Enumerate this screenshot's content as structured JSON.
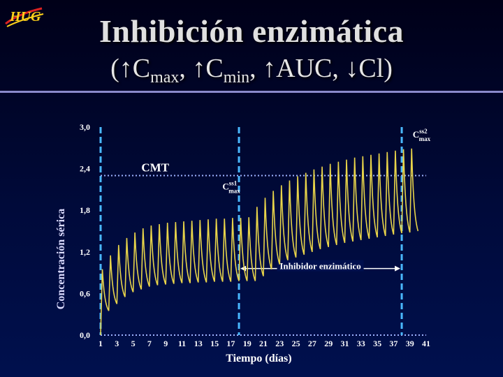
{
  "slide": {
    "title": "Inhibición enzimática",
    "subtitle_parts": {
      "open": "(",
      "a": "C",
      "a_sub": "max",
      "sep1": ", ",
      "b": "C",
      "b_sub": "min",
      "sep2": ", ",
      "c": "AUC",
      "sep3": ", ",
      "d": "Cl",
      "close": ")"
    },
    "logo_text": "HUG",
    "colors": {
      "background": "#000a3a",
      "title": "#e0e0e0",
      "rule": "#8a8acb",
      "curve": "#e8d44a",
      "axis": "#4ab8ff",
      "cmt_line": "#9fb4ff"
    }
  },
  "chart_data": {
    "type": "line",
    "ylabel": "Concentración sérica",
    "xlabel": "Tiempo (días)",
    "y_ticks": [
      "3,0",
      "2,4",
      "1,8",
      "1,2",
      "0,6",
      "0,0"
    ],
    "x_ticks": [
      "1",
      "3",
      "5",
      "7",
      "9",
      "11",
      "13",
      "15",
      "17",
      "19",
      "21",
      "23",
      "25",
      "27",
      "29",
      "31",
      "33",
      "35",
      "37",
      "39",
      "41"
    ],
    "ylim": [
      0,
      3.0
    ],
    "xlim": [
      1,
      41
    ],
    "dose_interval_days": 1,
    "cmt": {
      "label": "CMT",
      "value": 2.3
    },
    "inhibitor": {
      "label": "Inhibidor enzimático",
      "start": 18,
      "end": 38
    },
    "annotations": {
      "cmax_ss1": {
        "label": "C",
        "sup": "ss1",
        "sub": "max"
      },
      "cmax_ss2": {
        "label": "C",
        "sup": "ss2",
        "sub": "max"
      }
    },
    "series": [
      {
        "peak_before": [
          0.95,
          1.15,
          1.3,
          1.4,
          1.48,
          1.54,
          1.58,
          1.6,
          1.62,
          1.63,
          1.64,
          1.65,
          1.66,
          1.67,
          1.68,
          1.68,
          1.69,
          1.69,
          1.7
        ],
        "trough_before": [
          0.35,
          0.45,
          0.55,
          0.62,
          0.66,
          0.7,
          0.72,
          0.73,
          0.74,
          0.75,
          0.75,
          0.76,
          0.76,
          0.77,
          0.77,
          0.77,
          0.78,
          0.78,
          0.78
        ],
        "peak_after": [
          1.85,
          1.98,
          2.08,
          2.16,
          2.23,
          2.29,
          2.34,
          2.39,
          2.43,
          2.47,
          2.5,
          2.53,
          2.56,
          2.58,
          2.6,
          2.62,
          2.64,
          2.66,
          2.68,
          2.69
        ],
        "trough_after": [
          0.85,
          0.95,
          1.02,
          1.08,
          1.12,
          1.16,
          1.2,
          1.24,
          1.27,
          1.3,
          1.33,
          1.35,
          1.37,
          1.39,
          1.41,
          1.43,
          1.45,
          1.47,
          1.48,
          1.5
        ]
      }
    ]
  }
}
